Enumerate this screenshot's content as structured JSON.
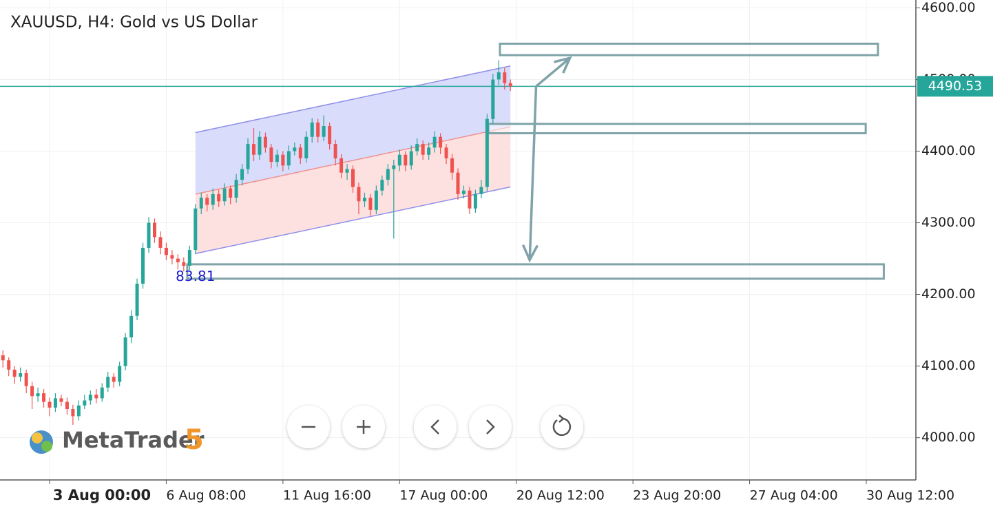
{
  "chart_data": {
    "type": "candlestick",
    "title": "XAUUSD, H4: Gold vs US Dollar",
    "brand": {
      "name": "MetaTrader",
      "version": "5"
    },
    "xlim": [
      -0.5,
      156.5
    ],
    "xticks": [
      {
        "value": 8,
        "label": "3 Aug 00:00"
      },
      {
        "value": 28,
        "label": "6 Aug 08:00"
      },
      {
        "value": 48,
        "label": "11 Aug 16:00"
      },
      {
        "value": 68,
        "label": "17 Aug 00:00"
      },
      {
        "value": 88,
        "label": "20 Aug 12:00"
      },
      {
        "value": 108,
        "label": "23 Aug 20:00"
      },
      {
        "value": 128,
        "label": "27 Aug 04:00"
      },
      {
        "value": 148,
        "label": "30 Aug 12:00"
      }
    ],
    "ylim": [
      3941,
      4611
    ],
    "yticks": [
      {
        "value": 4000,
        "label": "4000.00"
      },
      {
        "value": 4100,
        "label": "4100.00"
      },
      {
        "value": 4200,
        "label": "4200.00"
      },
      {
        "value": 4300,
        "label": "4300.00"
      },
      {
        "value": 4400,
        "label": "4400.00"
      },
      {
        "value": 4500,
        "label": "4500.00"
      },
      {
        "value": 4600,
        "label": "4600.00"
      }
    ],
    "grid": true,
    "colors": {
      "up": "#26a69a",
      "down": "#ef5350",
      "last_price": "#26a69a",
      "box": "#7fa3a8",
      "channel_upper": "#d9dcfb",
      "channel_lower": "#fde0e0",
      "channel_edge": "#8f8fe8",
      "channel_mid": "#f09090",
      "annotation": "#1a1ad0"
    },
    "open": [
      4115,
      4108,
      4095,
      4085,
      4090,
      4072,
      4058,
      4062,
      4050,
      4042,
      4055,
      4050,
      4040,
      4030,
      4045,
      4052,
      4060,
      4055,
      4070,
      4085,
      4078,
      4100,
      4140,
      4170,
      4215,
      4265,
      4300,
      4280,
      4265,
      4255,
      4250,
      4245,
      4240,
      4262,
      4320,
      4335,
      4325,
      4340,
      4330,
      4348,
      4335,
      4360,
      4375,
      4410,
      4395,
      4420,
      4405,
      4385,
      4395,
      4380,
      4400,
      4405,
      4390,
      4420,
      4440,
      4420,
      4435,
      4410,
      4390,
      4370,
      4375,
      4350,
      4330,
      4335,
      4318,
      4345,
      4360,
      4375,
      4380,
      4395,
      4380,
      4400,
      4410,
      4395,
      4405,
      4420,
      4405,
      4390,
      4370,
      4340,
      4345,
      4320,
      4340,
      4350,
      4445,
      4500,
      4510,
      4495
    ],
    "high": [
      4122,
      4112,
      4100,
      4098,
      4095,
      4078,
      4070,
      4068,
      4056,
      4062,
      4060,
      4056,
      4046,
      4052,
      4060,
      4066,
      4068,
      4076,
      4092,
      4090,
      4106,
      4146,
      4178,
      4222,
      4272,
      4308,
      4306,
      4288,
      4272,
      4262,
      4256,
      4252,
      4268,
      4326,
      4342,
      4340,
      4348,
      4346,
      4355,
      4352,
      4368,
      4382,
      4418,
      4432,
      4428,
      4426,
      4410,
      4402,
      4400,
      4408,
      4412,
      4410,
      4428,
      4446,
      4445,
      4450,
      4440,
      4416,
      4396,
      4382,
      4380,
      4356,
      4342,
      4340,
      4352,
      4366,
      4382,
      4388,
      4402,
      4400,
      4408,
      4418,
      4415,
      4412,
      4428,
      4425,
      4410,
      4396,
      4376,
      4352,
      4350,
      4346,
      4360,
      4452,
      4508,
      4527,
      4516,
      4500
    ],
    "low": [
      4098,
      4086,
      4075,
      4078,
      4062,
      4040,
      4050,
      4042,
      4030,
      4036,
      4044,
      4032,
      4018,
      4024,
      4040,
      4046,
      4048,
      4050,
      4064,
      4070,
      4072,
      4094,
      4132,
      4164,
      4208,
      4258,
      4272,
      4256,
      4248,
      4242,
      4235,
      4232,
      4234,
      4256,
      4312,
      4316,
      4318,
      4322,
      4324,
      4326,
      4328,
      4352,
      4368,
      4386,
      4388,
      4398,
      4376,
      4378,
      4372,
      4374,
      4394,
      4382,
      4384,
      4412,
      4412,
      4414,
      4402,
      4380,
      4362,
      4360,
      4342,
      4312,
      4322,
      4310,
      4312,
      4338,
      4352,
      4278,
      4372,
      4372,
      4374,
      4394,
      4388,
      4388,
      4398,
      4396,
      4382,
      4360,
      4332,
      4334,
      4312,
      4314,
      4334,
      4344,
      4438,
      4492,
      4486,
      4484
    ],
    "close": [
      4108,
      4095,
      4085,
      4090,
      4072,
      4058,
      4062,
      4050,
      4042,
      4055,
      4050,
      4040,
      4030,
      4045,
      4052,
      4060,
      4055,
      4070,
      4085,
      4078,
      4100,
      4140,
      4170,
      4215,
      4265,
      4300,
      4280,
      4265,
      4255,
      4250,
      4245,
      4240,
      4262,
      4320,
      4335,
      4325,
      4340,
      4330,
      4348,
      4335,
      4360,
      4375,
      4410,
      4395,
      4420,
      4405,
      4385,
      4395,
      4380,
      4400,
      4405,
      4390,
      4420,
      4440,
      4420,
      4435,
      4410,
      4390,
      4370,
      4375,
      4350,
      4330,
      4335,
      4318,
      4345,
      4360,
      4375,
      4380,
      4395,
      4380,
      4400,
      4410,
      4395,
      4405,
      4420,
      4405,
      4390,
      4370,
      4340,
      4345,
      4320,
      4340,
      4350,
      4445,
      4500,
      4510,
      4495,
      4490.53
    ],
    "last_price": 4490.53,
    "channel": {
      "x": [
        33,
        87
      ],
      "upper": [
        4426,
        4519
      ],
      "middle": [
        4340,
        4434
      ],
      "lower": [
        4257,
        4350
      ],
      "label": "83.81"
    },
    "boxes": [
      {
        "x": [
          85.2,
          150.0
        ],
        "y": [
          4534,
          4550
        ]
      },
      {
        "x": [
          83.2,
          147.9
        ],
        "y": [
          4425,
          4438
        ]
      },
      {
        "x": [
          31.6,
          151.0
        ],
        "y": [
          4222,
          4242
        ]
      }
    ],
    "arrows": [
      {
        "x": [
          91.4,
          97.2
        ],
        "y": [
          4490.53,
          4530
        ]
      },
      {
        "x": [
          91.4,
          90.3
        ],
        "y": [
          4490.53,
          4248
        ]
      }
    ]
  }
}
